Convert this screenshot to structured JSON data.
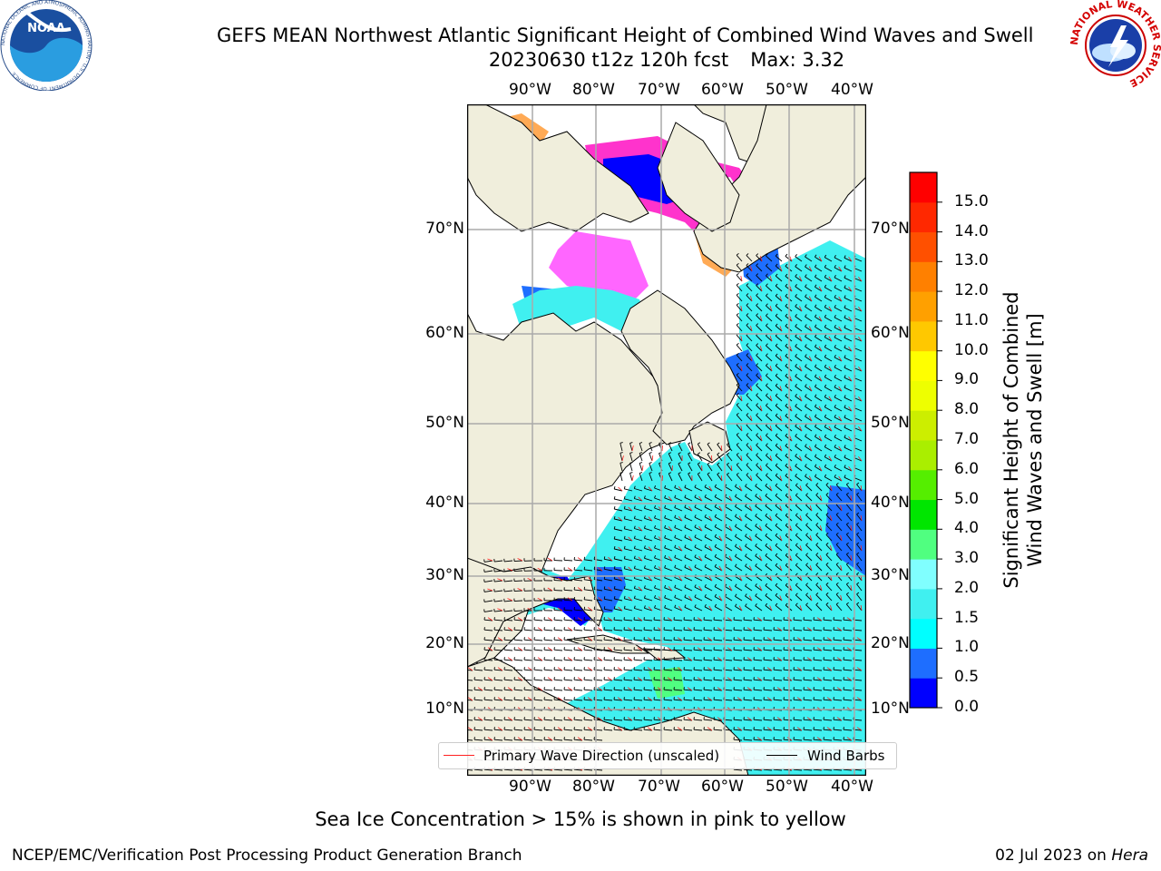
{
  "header": {
    "title": "GEFS MEAN Northwest Atlantic Significant Height of Combined Wind Waves and Swell",
    "subtitle_date": "20230630 t12z 120h fcst",
    "subtitle_max": "Max: 3.32"
  },
  "logos": {
    "left_text": "NOAA",
    "left_ring": "NATIONAL OCEANIC AND ATMOSPHERIC ADMINISTRATION · U.S. DEPARTMENT OF COMMERCE",
    "right_ring": "NATIONAL WEATHER SERVICE"
  },
  "map": {
    "lon_labels": [
      "90°W",
      "80°W",
      "70°W",
      "60°W",
      "50°W",
      "40°W"
    ],
    "lat_labels": [
      "70°N",
      "60°N",
      "50°N",
      "40°N",
      "30°N",
      "20°N",
      "10°N"
    ],
    "land_color": "#f0eedc",
    "ice_colors": [
      "#ff33cc",
      "#ff66ff",
      "#ffaa55"
    ]
  },
  "colorbar": {
    "title_line1": "Significant Height of Combined",
    "title_line2": "Wind Waves and Swell [m]",
    "ticks": [
      "0.0",
      "0.5",
      "1.0",
      "1.5",
      "2.0",
      "3.0",
      "4.0",
      "5.0",
      "6.0",
      "7.0",
      "8.0",
      "9.0",
      "10.0",
      "11.0",
      "12.0",
      "13.0",
      "14.0",
      "15.0"
    ],
    "colors": [
      "#0000ff",
      "#1e6eff",
      "#00ffff",
      "#40f0f0",
      "#80ffff",
      "#50ff80",
      "#00e600",
      "#55ee00",
      "#aaee00",
      "#ccee00",
      "#eeff00",
      "#ffff00",
      "#ffc800",
      "#ffa000",
      "#ff8000",
      "#ff5000",
      "#ff2800",
      "#ff0000"
    ]
  },
  "legend": {
    "wave_dir": "Primary Wave Direction (unscaled)",
    "wind_barbs": "Wind Barbs"
  },
  "note": "Sea Ice Concentration > 15% is shown in pink to yellow",
  "footer": {
    "left": "NCEP/EMC/Verification Post Processing Product Generation Branch",
    "right_date": "02 Jul 2023 on",
    "right_host": "Hera"
  }
}
